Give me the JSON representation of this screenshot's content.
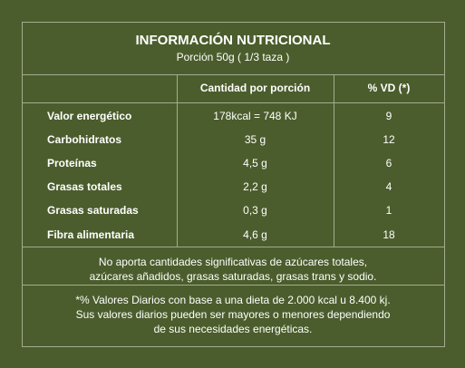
{
  "header": {
    "title": "INFORMACIÓN NUTRICIONAL",
    "subtitle": "Porción 50g ( 1/3 taza )"
  },
  "table": {
    "headers": [
      "Cantidad por porción",
      "% VD (*)"
    ],
    "rows": [
      [
        "Valor energético",
        "178kcal = 748 KJ",
        "9"
      ],
      [
        "Carbohidratos",
        "35 g",
        "12"
      ],
      [
        "Proteínas",
        "4,5 g",
        "6"
      ],
      [
        "Grasas totales",
        "2,2 g",
        "4"
      ],
      [
        "Grasas saturadas",
        "0,3 g",
        "1"
      ],
      [
        "Fibra alimentaria",
        "4,6 g",
        "18"
      ]
    ]
  },
  "note": [
    "No aporta cantidades significativas de azúcares totales,",
    "azúcares añadidos, grasas saturadas, grasas trans y sodio."
  ],
  "footnote": [
    "*% Valores Diarios con base a una dieta de 2.000 kcal u 8.400 kj.",
    "Sus valores diarios pueden ser mayores o menores dependiendo",
    "de sus necesidades energéticas."
  ]
}
